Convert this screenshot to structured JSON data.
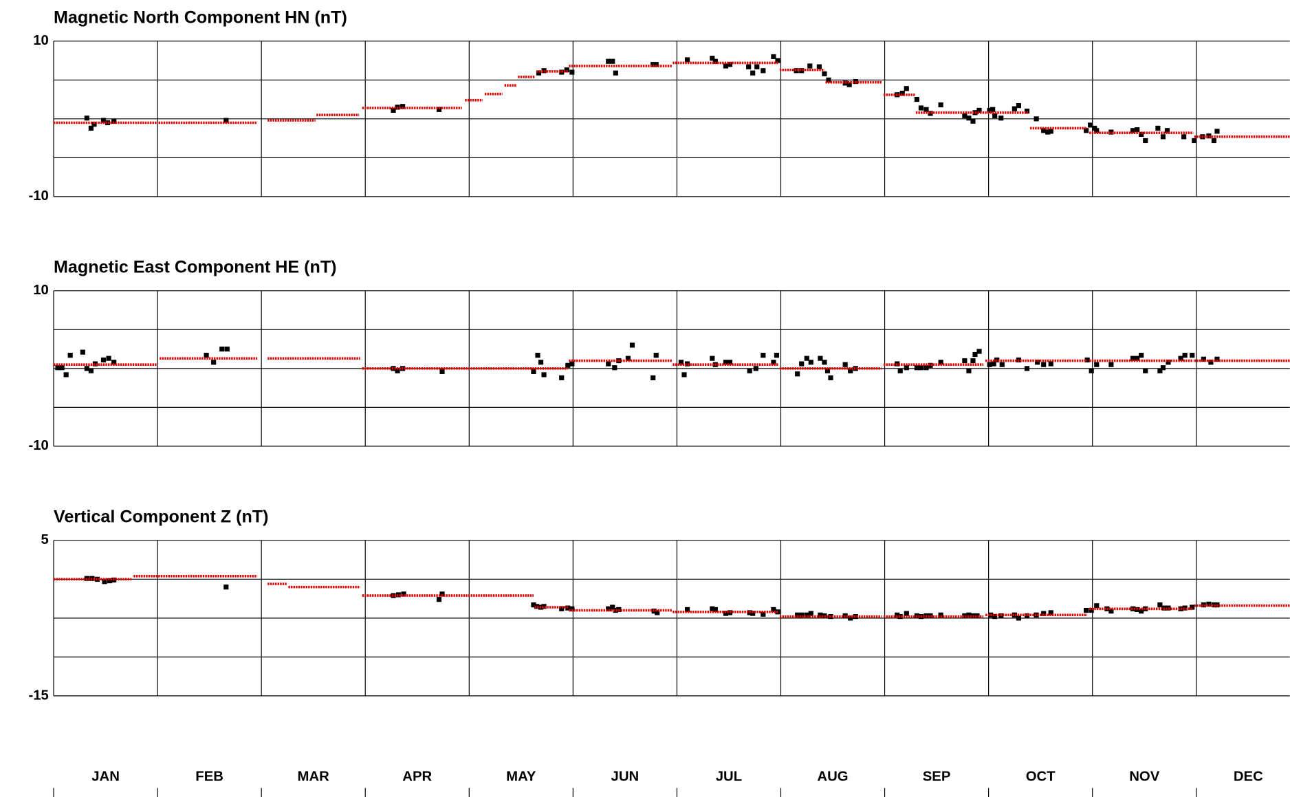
{
  "chart_data": [
    {
      "type": "scatter",
      "title": "Magnetic North Component HN (nT)",
      "xlim": [
        0,
        11.9
      ],
      "ylim": [
        -10,
        10
      ],
      "yticks": [
        -10,
        10
      ],
      "ygrid": [
        -10,
        -5,
        0,
        5,
        10
      ],
      "series": [
        {
          "color": "#000000",
          "x": [
            0.32,
            0.36,
            0.39,
            0.48,
            0.52,
            0.58,
            1.66,
            3.27,
            3.31,
            3.36,
            3.71,
            4.67,
            4.72,
            4.89,
            4.94,
            4.99,
            5.34,
            5.38,
            5.41,
            5.77,
            5.8,
            6.1,
            6.34,
            6.37,
            6.47,
            6.51,
            6.69,
            6.73,
            6.77,
            6.83,
            6.93,
            6.97,
            7.15,
            7.2,
            7.28,
            7.37,
            7.42,
            7.46,
            7.62,
            7.66,
            7.72,
            8.12,
            8.17,
            8.21,
            8.31,
            8.35,
            8.4,
            8.44,
            8.54,
            8.77,
            8.81,
            8.85,
            8.87,
            8.91,
            9.01,
            9.04,
            9.06,
            9.12,
            9.25,
            9.29,
            9.37,
            9.46,
            9.53,
            9.57,
            9.6,
            9.94,
            9.98,
            10.02,
            10.04,
            10.18,
            10.39,
            10.43,
            10.47,
            10.51,
            10.63,
            10.68,
            10.72,
            10.88,
            10.98,
            11.06,
            11.12,
            11.17,
            11.2
          ],
          "values": [
            0.1,
            -1.2,
            -0.7,
            -0.2,
            -0.5,
            -0.3,
            -0.2,
            1.1,
            1.5,
            1.6,
            1.2,
            5.9,
            6.2,
            6.0,
            6.3,
            6.0,
            7.4,
            7.4,
            5.9,
            7.0,
            7.0,
            7.6,
            7.8,
            7.4,
            6.8,
            7.0,
            6.7,
            5.9,
            6.7,
            6.2,
            8.0,
            7.5,
            6.2,
            6.2,
            6.8,
            6.7,
            5.8,
            5.0,
            4.6,
            4.4,
            4.8,
            3.1,
            3.3,
            3.9,
            2.5,
            1.4,
            1.2,
            0.7,
            1.8,
            0.4,
            0.1,
            -0.3,
            0.8,
            1.1,
            1.1,
            1.2,
            0.4,
            0.1,
            1.3,
            1.7,
            1.0,
            0.0,
            -1.5,
            -1.7,
            -1.6,
            -1.5,
            -0.8,
            -1.2,
            -1.5,
            -1.7,
            -1.5,
            -1.4,
            -2.0,
            -2.8,
            -1.2,
            -2.3,
            -1.5,
            -2.3,
            -2.8,
            -2.3,
            -2.2,
            -2.8,
            -1.6
          ]
        },
        {
          "color": "#e00000",
          "x": [
            0,
            0.99,
            null,
            1.01,
            1.96,
            null,
            2.06,
            2.52,
            null,
            2.53,
            2.94,
            null,
            2.97,
            3.93,
            null,
            3.96,
            4.13,
            null,
            4.15,
            4.32,
            null,
            4.34,
            4.46,
            null,
            4.47,
            4.63,
            null,
            4.65,
            4.95,
            null,
            4.96,
            5.95,
            null,
            5.96,
            6.98,
            null,
            6.99,
            7.42,
            null,
            7.43,
            7.97,
            null,
            7.99,
            8.29,
            null,
            8.3,
            9.38,
            null,
            9.4,
            9.95,
            null,
            9.97,
            10.97,
            null,
            10.98,
            11.9
          ],
          "values": [
            -0.5,
            -0.5,
            null,
            -0.5,
            -0.5,
            null,
            -0.2,
            -0.2,
            null,
            0.5,
            0.5,
            null,
            1.4,
            1.4,
            null,
            2.4,
            2.4,
            null,
            3.2,
            3.2,
            null,
            4.3,
            4.3,
            null,
            5.4,
            5.4,
            null,
            6.1,
            6.1,
            null,
            6.8,
            6.8,
            null,
            7.2,
            7.2,
            null,
            6.3,
            6.3,
            null,
            4.7,
            4.7,
            null,
            3.1,
            3.1,
            null,
            0.8,
            0.8,
            null,
            -1.2,
            -1.2,
            null,
            -1.8,
            -1.8,
            null,
            -2.3,
            -2.3
          ]
        }
      ]
    },
    {
      "type": "scatter",
      "title": "Magnetic East Component HE (nT)",
      "xlim": [
        0,
        11.9
      ],
      "ylim": [
        -10,
        10
      ],
      "yticks": [
        -10,
        10
      ],
      "ygrid": [
        -10,
        -5,
        0,
        5,
        10
      ],
      "series": [
        {
          "color": "#000000",
          "x": [
            0.04,
            0.08,
            0.12,
            0.16,
            0.28,
            0.32,
            0.36,
            0.4,
            0.48,
            0.53,
            0.58,
            1.47,
            1.54,
            1.62,
            1.67,
            3.27,
            3.31,
            3.36,
            3.74,
            4.62,
            4.66,
            4.69,
            4.72,
            4.89,
            4.95,
            4.99,
            5.34,
            5.4,
            5.44,
            5.53,
            5.57,
            5.77,
            5.8,
            6.04,
            6.07,
            6.1,
            6.34,
            6.37,
            6.47,
            6.51,
            6.7,
            6.76,
            6.83,
            6.93,
            6.96,
            7.16,
            7.2,
            7.25,
            7.29,
            7.38,
            7.42,
            7.45,
            7.48,
            7.62,
            7.67,
            7.72,
            8.12,
            8.15,
            8.21,
            8.31,
            8.35,
            8.4,
            8.44,
            8.54,
            8.77,
            8.81,
            8.85,
            8.87,
            8.91,
            9.01,
            9.05,
            9.08,
            9.13,
            9.29,
            9.37,
            9.47,
            9.53,
            9.6,
            9.95,
            9.99,
            10.04,
            10.18,
            10.39,
            10.43,
            10.47,
            10.51,
            10.65,
            10.68,
            10.73,
            10.85,
            10.89,
            10.96,
            11.07,
            11.14,
            11.2
          ],
          "values": [
            0.1,
            0.1,
            -0.8,
            1.7,
            2.1,
            0.0,
            -0.3,
            0.6,
            1.1,
            1.3,
            0.8,
            1.7,
            0.8,
            2.5,
            2.5,
            0.0,
            -0.3,
            0.0,
            -0.4,
            -0.4,
            1.7,
            0.8,
            -0.8,
            -1.2,
            0.4,
            0.6,
            0.6,
            0.1,
            1.0,
            1.3,
            3.0,
            -1.2,
            1.7,
            0.8,
            -0.8,
            0.6,
            1.3,
            0.5,
            0.8,
            0.8,
            -0.3,
            0.0,
            1.7,
            0.8,
            1.7,
            -0.7,
            0.6,
            1.3,
            0.8,
            1.3,
            0.8,
            -0.3,
            -1.2,
            0.5,
            -0.3,
            0.0,
            0.6,
            -0.3,
            0.1,
            0.1,
            0.1,
            0.1,
            0.4,
            0.8,
            1.0,
            -0.3,
            1.0,
            1.8,
            2.2,
            0.5,
            0.6,
            1.1,
            0.5,
            1.1,
            0.0,
            0.8,
            0.5,
            0.6,
            1.1,
            -0.3,
            0.5,
            0.5,
            1.3,
            1.3,
            1.7,
            -0.3,
            -0.3,
            0.1,
            0.8,
            1.3,
            1.7,
            1.7,
            1.2,
            0.8,
            1.2
          ]
        },
        {
          "color": "#e00000",
          "x": [
            0,
            0.99,
            null,
            1.02,
            1.96,
            null,
            2.06,
            2.95,
            null,
            2.97,
            4.95,
            null,
            4.96,
            5.95,
            null,
            5.96,
            6.98,
            null,
            6.99,
            7.97,
            null,
            7.99,
            8.95,
            null,
            8.97,
            9.95,
            null,
            9.97,
            10.97,
            null,
            10.98,
            11.9
          ],
          "values": [
            0.5,
            0.5,
            null,
            1.3,
            1.3,
            null,
            1.3,
            1.3,
            null,
            0.0,
            0.0,
            null,
            1.0,
            1.0,
            null,
            0.5,
            0.5,
            null,
            0.0,
            0.0,
            null,
            0.5,
            0.5,
            null,
            1.0,
            1.0,
            null,
            1.0,
            1.0,
            null,
            1.0,
            1.0
          ]
        }
      ]
    },
    {
      "type": "scatter",
      "title": "Vertical Component Z (nT)",
      "xlim": [
        0,
        11.9
      ],
      "ylim": [
        -15,
        5
      ],
      "yticks": [
        -15,
        5
      ],
      "ygrid": [
        -15,
        -10,
        -5,
        0,
        5
      ],
      "series": [
        {
          "color": "#000000",
          "x": [
            0.32,
            0.37,
            0.42,
            0.49,
            0.54,
            0.58,
            1.66,
            3.27,
            3.32,
            3.37,
            3.71,
            3.74,
            4.62,
            4.65,
            4.69,
            4.72,
            4.89,
            4.95,
            4.99,
            5.34,
            5.38,
            5.41,
            5.44,
            5.78,
            5.81,
            6.1,
            6.34,
            6.37,
            6.47,
            6.51,
            6.7,
            6.73,
            6.83,
            6.93,
            6.97,
            7.16,
            7.2,
            7.25,
            7.29,
            7.38,
            7.42,
            7.48,
            7.62,
            7.67,
            7.72,
            8.12,
            8.15,
            8.21,
            8.31,
            8.35,
            8.4,
            8.44,
            8.54,
            8.77,
            8.81,
            8.85,
            8.89,
            9.02,
            9.06,
            9.12,
            9.25,
            9.29,
            9.37,
            9.46,
            9.53,
            9.6,
            9.94,
            9.99,
            10.04,
            10.14,
            10.18,
            10.39,
            10.43,
            10.47,
            10.51,
            10.65,
            10.69,
            10.73,
            10.85,
            10.89,
            10.96,
            11.07,
            11.12,
            11.17,
            11.2
          ],
          "values": [
            0.1,
            0.1,
            0.0,
            -0.3,
            -0.2,
            -0.1,
            -1.0,
            -2.1,
            -2.0,
            -1.9,
            -2.6,
            -1.9,
            -3.3,
            -3.5,
            -3.6,
            -3.5,
            -3.8,
            -3.7,
            -3.8,
            -3.8,
            -3.6,
            -4.0,
            -3.9,
            -4.1,
            -4.3,
            -3.9,
            -3.8,
            -3.9,
            -4.4,
            -4.3,
            -4.3,
            -4.4,
            -4.5,
            -3.9,
            -4.2,
            -4.6,
            -4.6,
            -4.6,
            -4.4,
            -4.6,
            -4.7,
            -4.8,
            -4.7,
            -5.0,
            -4.8,
            -4.6,
            -4.8,
            -4.4,
            -4.7,
            -4.8,
            -4.7,
            -4.7,
            -4.6,
            -4.7,
            -4.6,
            -4.7,
            -4.7,
            -4.6,
            -4.8,
            -4.7,
            -4.6,
            -5.0,
            -4.7,
            -4.6,
            -4.4,
            -4.3,
            -4.0,
            -4.0,
            -3.4,
            -3.8,
            -4.1,
            -3.8,
            -3.9,
            -4.1,
            -3.8,
            -3.3,
            -3.7,
            -3.7,
            -3.8,
            -3.7,
            -3.6,
            -3.3,
            -3.2,
            -3.3,
            -3.3
          ]
        },
        {
          "color": "#e00000",
          "x": [
            0,
            0.75,
            null,
            0.77,
            1.96,
            null,
            2.06,
            2.25,
            null,
            2.26,
            2.95,
            null,
            2.97,
            4.62,
            null,
            4.63,
            4.95,
            null,
            4.96,
            5.95,
            null,
            5.96,
            6.98,
            null,
            6.99,
            7.97,
            null,
            7.99,
            8.95,
            null,
            8.97,
            9.95,
            null,
            9.97,
            10.97,
            null,
            10.98,
            11.9
          ],
          "values": [
            0.0,
            0.0,
            null,
            0.4,
            0.4,
            null,
            -0.6,
            -0.6,
            null,
            -1.0,
            -1.0,
            null,
            -2.1,
            -2.1,
            null,
            -3.6,
            -3.6,
            null,
            -4.0,
            -4.0,
            null,
            -4.2,
            -4.2,
            null,
            -4.8,
            -4.8,
            null,
            -4.8,
            -4.8,
            null,
            -4.6,
            -4.6,
            null,
            -3.8,
            -3.8,
            null,
            -3.4,
            -3.4
          ]
        }
      ]
    }
  ],
  "months": [
    "JAN",
    "FEB",
    "MAR",
    "APR",
    "MAY",
    "JUN",
    "JUL",
    "AUG",
    "SEP",
    "OCT",
    "NOV",
    "DEC"
  ]
}
